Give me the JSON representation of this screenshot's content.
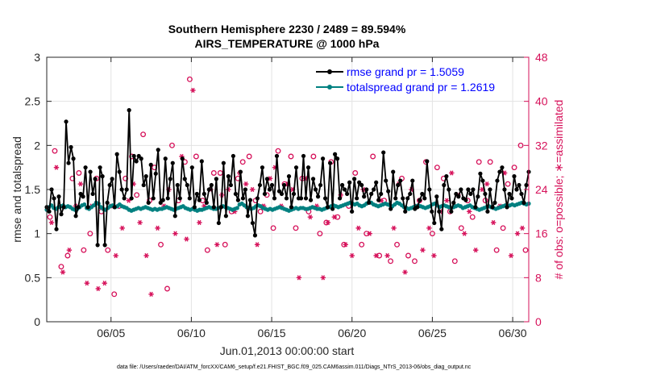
{
  "chart_data": {
    "type": "line",
    "title_line1": "Southern Hemisphere 2230 / 2489 = 89.594%",
    "title_line2": "AIRS_TEMPERATURE @ 1000 hPa",
    "xlabel": "Jun.01,2013 00:00:00 start",
    "ylabel_left": "rmse and totalspread",
    "ylabel_right": "# of obs: o=possible; ∗=assimilated",
    "footnote": "data file: /Users/raeder/DAI/ATM_forcXX/CAM6_setup/f.e21.FHIST_BGC.f09_025.CAM6assim.011/Diags_NTrS_2013-06/obs_diag_output.nc",
    "x_range": [
      1.0,
      31.0
    ],
    "x_ticks": [
      5,
      10,
      15,
      20,
      25,
      30
    ],
    "x_tick_labels": [
      "06/05",
      "06/10",
      "06/15",
      "06/20",
      "06/25",
      "06/30"
    ],
    "y_left_range": [
      0,
      3
    ],
    "y_left_ticks": [
      "0",
      "0.5",
      "1",
      "1.5",
      "2",
      "2.5",
      "3"
    ],
    "y_right_range": [
      0,
      48
    ],
    "y_right_ticks": [
      "0",
      "8",
      "16",
      "24",
      "32",
      "40",
      "48"
    ],
    "grid": true,
    "legend_position": "top-right",
    "colors": {
      "rmse": "#000000",
      "spread": "#008080",
      "obs": "#d6115a",
      "axis": "#262626",
      "grid": "#e3e3e3"
    },
    "series": [
      {
        "name": "rmse grand pr = 1.5059",
        "axis": "left",
        "values": [
          1.3,
          1.25,
          1.5,
          1.4,
          1.05,
          1.42,
          1.22,
          1.3,
          2.27,
          1.8,
          1.98,
          1.85,
          1.2,
          1.3,
          1.45,
          1.42,
          1.75,
          1.3,
          1.7,
          1.45,
          1.62,
          0.87,
          1.75,
          1.65,
          0.87,
          1.35,
          1.55,
          1.62,
          1.3,
          1.9,
          1.7,
          1.5,
          1.4,
          1.5,
          2.4,
          1.4,
          1.88,
          1.82,
          1.88,
          1.85,
          1.55,
          1.65,
          1.35,
          1.78,
          1.4,
          1.68,
          1.95,
          1.35,
          1.38,
          1.85,
          1.4,
          1.62,
          1.8,
          1.2,
          1.55,
          1.4,
          1.85,
          1.62,
          1.55,
          1.4,
          1.75,
          1.3,
          1.45,
          1.38,
          1.82,
          1.45,
          1.35,
          1.5,
          1.55,
          1.3,
          1.62,
          1.12,
          1.3,
          1.8,
          1.2,
          1.65,
          1.55,
          1.88,
          1.45,
          1.38,
          1.7,
          1.4,
          1.5,
          1.2,
          1.38,
          1.12,
          0.98,
          1.4,
          1.55,
          1.75,
          1.45,
          1.62,
          1.5,
          1.55,
          1.4,
          1.88,
          1.48,
          1.45,
          1.55,
          1.4,
          1.65,
          1.3,
          1.45,
          1.75,
          1.4,
          1.4,
          1.88,
          1.4,
          1.75,
          1.38,
          1.62,
          1.5,
          1.42,
          1.55,
          1.85,
          1.4,
          1.3,
          1.8,
          1.28,
          1.9,
          1.85,
          1.4,
          1.55,
          1.5,
          1.45,
          1.58,
          1.25,
          1.62,
          1.4,
          1.58,
          1.55,
          1.42,
          1.5,
          1.35,
          1.45,
          1.5,
          1.58,
          1.38,
          1.45,
          1.92,
          1.6,
          1.48,
          1.28,
          1.7,
          1.4,
          1.55,
          1.6,
          1.4,
          1.25,
          1.4,
          1.45,
          1.6,
          1.28,
          1.3,
          1.38,
          1.45,
          1.4,
          1.82,
          1.5,
          1.25,
          1.12,
          1.42,
          1.25,
          1.05,
          1.55,
          1.65,
          1.5,
          1.25,
          1.35,
          1.45,
          1.42,
          1.5,
          1.4,
          1.38,
          1.5,
          1.45,
          1.5,
          1.3,
          1.42,
          1.68,
          1.6,
          1.45,
          1.25,
          1.5,
          1.3,
          1.35,
          1.6,
          1.7,
          1.75,
          1.5,
          1.3,
          1.45,
          1.4,
          1.65,
          1.5,
          1.55,
          1.45,
          1.35,
          1.55,
          1.7
        ]
      },
      {
        "name": "totalspread grand pr = 1.2619",
        "axis": "left",
        "values": [
          1.27,
          1.3,
          1.32,
          1.29,
          1.28,
          1.3,
          1.31,
          1.32,
          1.3,
          1.31,
          1.3,
          1.28,
          1.27,
          1.28,
          1.3,
          1.32,
          1.33,
          1.29,
          1.28,
          1.3,
          1.32,
          1.35,
          1.34,
          1.3,
          1.28,
          1.27,
          1.29,
          1.31,
          1.32,
          1.3,
          1.31,
          1.33,
          1.31,
          1.3,
          1.29,
          1.27,
          1.26,
          1.27,
          1.28,
          1.29,
          1.28,
          1.29,
          1.3,
          1.29,
          1.28,
          1.27,
          1.28,
          1.27,
          1.28,
          1.28,
          1.29,
          1.3,
          1.29,
          1.28,
          1.27,
          1.28,
          1.29,
          1.3,
          1.31,
          1.29,
          1.28,
          1.27,
          1.28,
          1.27,
          1.26,
          1.27,
          1.27,
          1.28,
          1.29,
          1.3,
          1.29,
          1.28,
          1.28,
          1.29,
          1.3,
          1.31,
          1.3,
          1.29,
          1.28,
          1.27,
          1.28,
          1.29,
          1.33,
          1.34,
          1.32,
          1.3,
          1.29,
          1.28,
          1.29,
          1.31,
          1.32,
          1.31,
          1.29,
          1.28,
          1.27,
          1.28,
          1.27,
          1.28,
          1.29,
          1.3,
          1.29,
          1.28,
          1.27,
          1.26,
          1.27,
          1.28,
          1.29,
          1.28,
          1.29,
          1.29,
          1.28,
          1.28,
          1.29,
          1.3,
          1.29,
          1.28,
          1.28,
          1.27,
          1.28,
          1.29,
          1.3,
          1.31,
          1.32,
          1.31,
          1.3,
          1.31,
          1.32,
          1.33,
          1.34,
          1.35,
          1.34,
          1.33,
          1.34,
          1.32,
          1.31,
          1.32,
          1.34,
          1.36,
          1.35,
          1.33,
          1.32,
          1.31,
          1.32,
          1.33,
          1.34,
          1.33,
          1.32,
          1.31,
          1.33,
          1.35,
          1.34,
          1.32,
          1.3,
          1.29,
          1.28,
          1.29,
          1.3,
          1.31,
          1.32,
          1.31,
          1.3,
          1.29,
          1.3,
          1.31,
          1.33,
          1.34,
          1.32,
          1.3,
          1.31,
          1.32,
          1.31,
          1.3,
          1.29,
          1.3,
          1.31,
          1.32,
          1.31,
          1.29,
          1.3,
          1.31,
          1.32,
          1.3,
          1.29,
          1.28,
          1.27,
          1.28,
          1.29,
          1.3,
          1.31,
          1.3,
          1.29,
          1.28,
          1.29,
          1.3,
          1.31,
          1.32,
          1.31,
          1.32,
          1.33,
          1.32,
          1.33,
          1.34,
          1.35,
          1.34,
          1.33,
          1.34
        ]
      },
      {
        "name": "possible",
        "axis": "right",
        "marker": "o",
        "x": [
          1.2,
          1.5,
          1.9,
          2.3,
          2.6,
          3.0,
          3.3,
          3.7,
          4.1,
          4.4,
          4.8,
          5.2,
          5.5,
          5.9,
          6.3,
          6.6,
          7.0,
          7.4,
          7.7,
          8.1,
          8.5,
          8.8,
          9.2,
          9.6,
          9.9,
          10.3,
          10.7,
          11.0,
          11.4,
          11.8,
          12.1,
          12.5,
          12.9,
          13.2,
          13.6,
          14.0,
          14.3,
          14.7,
          15.1,
          15.4,
          15.8,
          16.2,
          16.5,
          16.9,
          17.3,
          17.6,
          18.0,
          18.4,
          18.7,
          19.1,
          19.5,
          19.8,
          20.2,
          20.6,
          20.9,
          21.3,
          21.7,
          22.0,
          22.4,
          22.8,
          23.1,
          23.5,
          23.9,
          24.2,
          24.6,
          25.0,
          25.3,
          25.7,
          26.1,
          26.4,
          26.8,
          27.2,
          27.5,
          27.9,
          28.3,
          28.6,
          29.0,
          29.4,
          29.7,
          30.1,
          30.5,
          30.8
        ],
        "values": [
          19,
          31,
          10,
          12,
          26,
          27,
          13,
          16,
          26,
          20,
          13,
          5,
          21,
          26,
          30,
          23,
          34,
          22,
          28,
          14,
          6,
          32,
          22,
          29,
          44,
          30,
          22,
          13,
          27,
          27,
          14,
          20,
          26,
          29,
          30,
          22,
          20,
          23,
          17,
          31,
          25,
          30,
          17,
          26,
          20,
          30,
          16,
          18,
          29,
          19,
          14,
          21,
          27,
          14,
          16,
          30,
          12,
          22,
          11,
          14,
          26,
          12,
          11,
          22,
          29,
          16,
          28,
          26,
          20,
          11,
          17,
          22,
          19,
          29,
          22,
          29,
          13,
          17,
          25,
          28,
          32,
          13
        ]
      },
      {
        "name": "assimilated",
        "axis": "right",
        "marker": "asterisk",
        "x": [
          1.3,
          1.6,
          2.0,
          2.4,
          2.8,
          3.1,
          3.5,
          3.8,
          4.2,
          4.6,
          5.0,
          5.3,
          5.7,
          6.1,
          6.4,
          6.8,
          7.2,
          7.5,
          7.9,
          8.3,
          8.6,
          9.0,
          9.4,
          9.7,
          10.1,
          10.5,
          10.8,
          11.2,
          11.6,
          11.9,
          12.3,
          12.7,
          13.0,
          13.4,
          13.8,
          14.1,
          14.5,
          14.9,
          15.2,
          15.6,
          16.0,
          16.3,
          16.7,
          17.1,
          17.4,
          17.8,
          18.2,
          18.5,
          18.9,
          19.3,
          19.6,
          20.0,
          20.4,
          20.7,
          21.1,
          21.5,
          21.8,
          22.2,
          22.6,
          22.9,
          23.3,
          23.7,
          24.0,
          24.4,
          24.8,
          25.1,
          25.5,
          25.9,
          26.2,
          26.6,
          27.0,
          27.3,
          27.7,
          28.1,
          28.4,
          28.8,
          29.2,
          29.5,
          29.9,
          30.3,
          30.6
        ],
        "values": [
          18,
          28,
          9,
          13,
          21,
          25,
          7,
          21,
          6,
          7,
          21,
          12,
          17,
          22,
          25,
          18,
          12,
          5,
          17,
          21,
          24,
          16,
          30,
          15,
          42,
          18,
          21,
          24,
          14,
          23,
          24,
          20,
          27,
          25,
          24,
          14,
          21,
          26,
          28,
          21,
          25,
          24,
          8,
          26,
          19,
          21,
          8,
          18,
          19,
          23,
          14,
          12,
          17,
          24,
          16,
          12,
          22,
          12,
          17,
          25,
          9,
          24,
          21,
          13,
          17,
          12,
          20,
          22,
          27,
          23,
          16,
          20,
          13,
          24,
          25,
          18,
          21,
          27,
          12,
          16,
          17
        ]
      }
    ]
  }
}
